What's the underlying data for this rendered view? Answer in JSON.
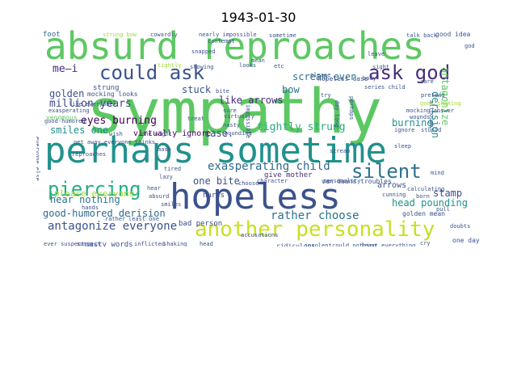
{
  "title": "1943-01-30",
  "words": [
    {
      "text": "sympathy",
      "color": "#5dc863"
    },
    {
      "text": "absurd reproaches",
      "color": "#5dc863"
    },
    {
      "text": "hopeless",
      "color": "#3b528b"
    },
    {
      "text": "perhaps sometime",
      "color": "#21918c"
    },
    {
      "text": "another personality",
      "color": "#c8e020"
    },
    {
      "text": "could ask",
      "color": "#3b528b"
    },
    {
      "text": "ask god",
      "color": "#472c7a"
    },
    {
      "text": "silent",
      "color": "#2c728e"
    },
    {
      "text": "piercing",
      "color": "#27ad81"
    },
    {
      "text": "exasperating child",
      "color": "#31688e"
    },
    {
      "text": "antagonize everyone",
      "color": "#3b528b"
    },
    {
      "text": "rather choose",
      "color": "#2c728e"
    },
    {
      "text": "good-humored derision",
      "color": "#31688e"
    },
    {
      "text": "million years",
      "color": "#3e4989"
    },
    {
      "text": "eyes burning",
      "color": "#440154"
    },
    {
      "text": "scream even",
      "color": "#2c728e"
    },
    {
      "text": "tightly strung",
      "color": "#27ad81"
    },
    {
      "text": "like arrows",
      "color": "#472c7a"
    },
    {
      "text": "golden",
      "color": "#3b528b"
    },
    {
      "text": "hear nothing",
      "color": "#2c728e"
    },
    {
      "text": "please everyone",
      "color": "#a0da39"
    },
    {
      "text": "smiles one",
      "color": "#21918c"
    },
    {
      "text": "head pounding",
      "color": "#21918c"
    },
    {
      "text": "burning",
      "color": "#21918c"
    },
    {
      "text": "stamp",
      "color": "#3e4989"
    },
    {
      "text": "me—i",
      "color": "#472c7a"
    },
    {
      "text": "stuck",
      "color": "#3b528b"
    },
    {
      "text": "bow",
      "color": "#2c728e"
    },
    {
      "text": "case.",
      "color": "#3e4989"
    },
    {
      "text": "one bite",
      "color": "#3b528b"
    },
    {
      "text": "antagonize",
      "color": "#5dc863"
    },
    {
      "text": "derision",
      "color": "#21918c"
    },
    {
      "text": "virtually ignore",
      "color": "#440154"
    },
    {
      "text": "give mother",
      "color": "#472c7a"
    },
    {
      "text": "arrows",
      "color": "#3b528b"
    },
    {
      "text": "hurls",
      "color": "#3e4989"
    },
    {
      "text": "strung",
      "color": "#3b528b"
    },
    {
      "text": "mocking looks",
      "color": "#3b528b"
    },
    {
      "text": "venomous",
      "color": "#5dc863"
    },
    {
      "text": "golden mean",
      "color": "#3b528b"
    },
    {
      "text": "nasty words",
      "color": "#3b528b"
    },
    {
      "text": "bad person",
      "color": "#3e4989"
    },
    {
      "text": "van daans troubles",
      "color": "#3b528b"
    },
    {
      "text": "hopeless case",
      "color": "#3b528b"
    },
    {
      "text": "character",
      "color": "#3b528b"
    },
    {
      "text": "personality",
      "color": "#3b528b"
    },
    {
      "text": "ridiculous",
      "color": "#3b528b"
    },
    {
      "text": "one day",
      "color": "#3b528b"
    },
    {
      "text": "foot",
      "color": "#31688e"
    },
    {
      "text": "good idea",
      "color": "#3b528b"
    },
    {
      "text": "talk back",
      "color": "#3b528b"
    },
    {
      "text": "cowardly",
      "color": "#3b528b"
    },
    {
      "text": "strung bow",
      "color": "#9fda3a"
    },
    {
      "text": "nearly impossible",
      "color": "#3b528b"
    },
    {
      "text": "snapped",
      "color": "#3b528b"
    },
    {
      "text": "contempt",
      "color": "#3b528b"
    },
    {
      "text": "showing",
      "color": "#3b528b"
    },
    {
      "text": "tightly",
      "color": "#9fda3a"
    },
    {
      "text": "looks",
      "color": "#3b528b"
    },
    {
      "text": "sometime",
      "color": "#3b528b"
    },
    {
      "text": "leave",
      "color": "#3b528b"
    },
    {
      "text": "sight",
      "color": "#3b528b"
    },
    {
      "text": "god",
      "color": "#3b528b"
    },
    {
      "text": "please",
      "color": "#3b528b"
    },
    {
      "text": "body",
      "color": "#3b528b"
    },
    {
      "text": "try",
      "color": "#3b528b"
    },
    {
      "text": "series child",
      "color": "#3b528b"
    },
    {
      "text": "care",
      "color": "#3b528b"
    },
    {
      "text": "pretend",
      "color": "#3b528b"
    },
    {
      "text": "mocking answer",
      "color": "#3b528b"
    },
    {
      "text": "ignore",
      "color": "#3b528b"
    },
    {
      "text": "stupid",
      "color": "#3b528b"
    },
    {
      "text": "sleep",
      "color": "#3b528b"
    },
    {
      "text": "good shaking",
      "color": "#9fda3a"
    },
    {
      "text": "perhaps",
      "color": "#3b528b"
    },
    {
      "text": "wounds",
      "color": "#3b528b"
    },
    {
      "text": "although",
      "color": "#3b528b"
    },
    {
      "text": "like everyone",
      "color": "#3b528b"
    },
    {
      "text": "exasperating",
      "color": "#3b528b"
    },
    {
      "text": "good-humored",
      "color": "#3b528b"
    },
    {
      "text": "everyone else",
      "color": "#3b528b"
    },
    {
      "text": "get away everyone thinks",
      "color": "#3b528b"
    },
    {
      "text": "reproaches",
      "color": "#3b528b"
    },
    {
      "text": "one night",
      "color": "#3b528b"
    },
    {
      "text": "wish",
      "color": "#3b528b"
    },
    {
      "text": "mash",
      "color": "#3b528b"
    },
    {
      "text": "pounding",
      "color": "#3b528b"
    },
    {
      "text": "virtually",
      "color": "#3b528b"
    },
    {
      "text": "nasty",
      "color": "#3b528b"
    },
    {
      "text": "tired",
      "color": "#3b528b"
    },
    {
      "text": "choose",
      "color": "#3b528b"
    },
    {
      "text": "lazy",
      "color": "#3b528b"
    },
    {
      "text": "hear",
      "color": "#3b528b"
    },
    {
      "text": "absurd",
      "color": "#3b528b"
    },
    {
      "text": "smiles",
      "color": "#3b528b"
    },
    {
      "text": "rather",
      "color": "#3b528b"
    },
    {
      "text": "least one",
      "color": "#3b528b"
    },
    {
      "text": "accusations",
      "color": "#3b528b"
    },
    {
      "text": "ever suspect",
      "color": "#3b528b"
    },
    {
      "text": "inflicted",
      "color": "#3b528b"
    },
    {
      "text": "shaking",
      "color": "#3b528b"
    },
    {
      "text": "head",
      "color": "#3b528b"
    },
    {
      "text": "cry",
      "color": "#3b528b"
    },
    {
      "text": "doubts",
      "color": "#3b528b"
    },
    {
      "text": "pull",
      "color": "#3b528b"
    },
    {
      "text": "born",
      "color": "#3b528b"
    },
    {
      "text": "mind",
      "color": "#3b528b"
    },
    {
      "text": "cunning",
      "color": "#3b528b"
    },
    {
      "text": "calculating",
      "color": "#3b528b"
    },
    {
      "text": "insolent",
      "color": "#3b528b"
    },
    {
      "text": "could nothing",
      "color": "#3b528b"
    },
    {
      "text": "least everything",
      "color": "#3b528b"
    },
    {
      "text": "day long",
      "color": "#3b528b"
    },
    {
      "text": "impossible",
      "color": "#3b528b"
    },
    {
      "text": "mean",
      "color": "#3b528b"
    },
    {
      "text": "etc",
      "color": "#3b528b"
    },
    {
      "text": "bite",
      "color": "#3b528b"
    },
    {
      "text": "treat",
      "color": "#3b528b"
    },
    {
      "text": "sure",
      "color": "#3b528b"
    },
    {
      "text": "scream",
      "color": "#3b528b"
    },
    {
      "text": "suspect",
      "color": "#3b528b"
    },
    {
      "text": "hands",
      "color": "#3b528b"
    }
  ]
}
